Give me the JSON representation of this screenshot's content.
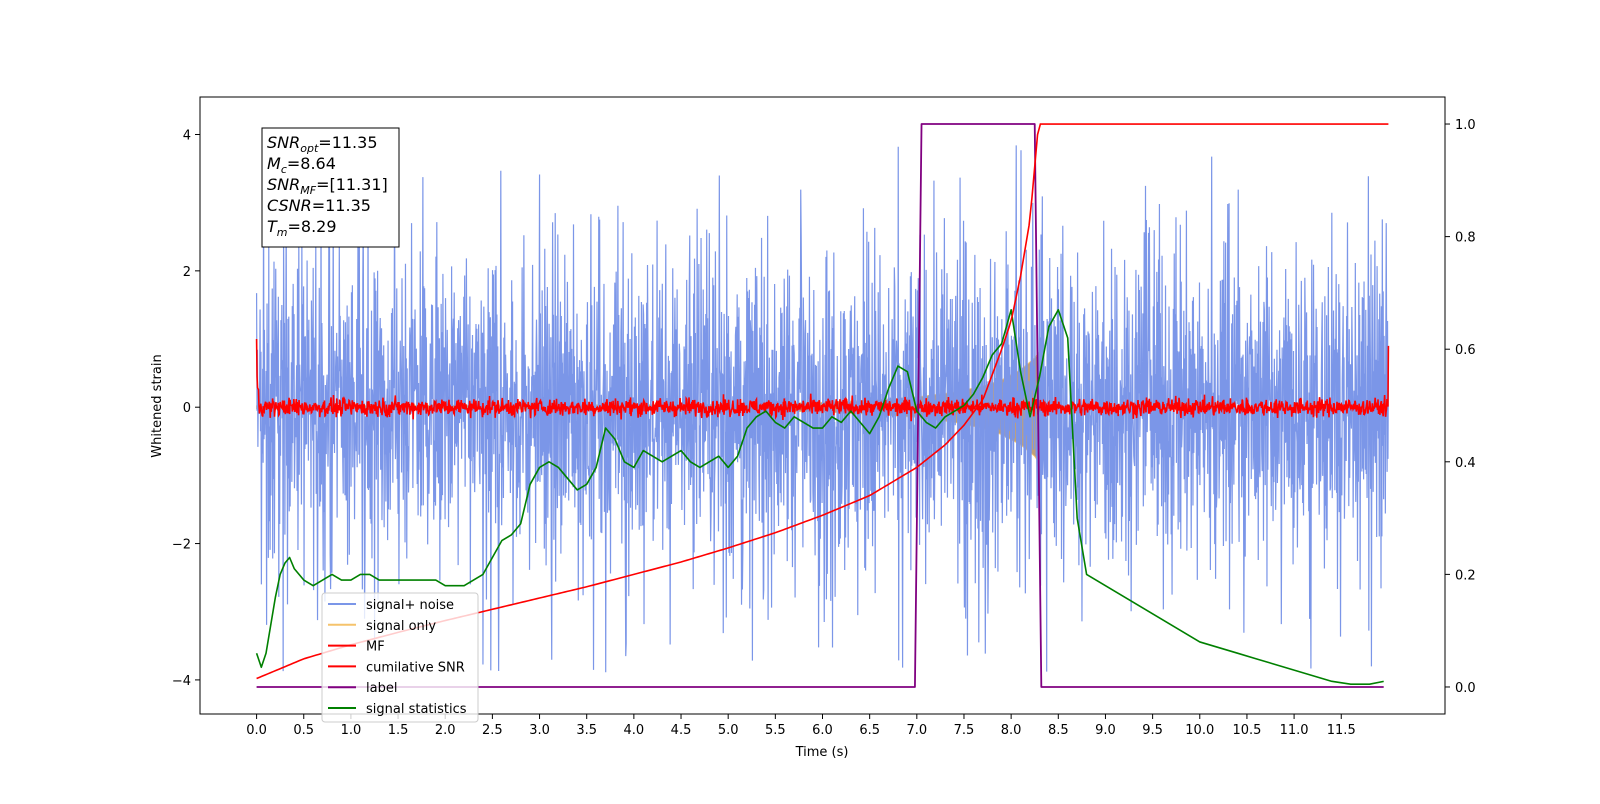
{
  "chart_data": {
    "type": "line",
    "xlabel": "Time (s)",
    "ylabel": "Whitened strain",
    "xlim": [
      -0.6,
      12.6
    ],
    "ylim": [
      -4.5,
      4.55
    ],
    "y2lim": [
      -0.048,
      1.048
    ],
    "x_ticks": [
      0.0,
      0.5,
      1.0,
      1.5,
      2.0,
      2.5,
      3.0,
      3.5,
      4.0,
      4.5,
      5.0,
      5.5,
      6.0,
      6.5,
      7.0,
      7.5,
      8.0,
      8.5,
      9.0,
      9.5,
      10.0,
      10.5,
      11.0,
      11.5
    ],
    "x_tick_labels": [
      "0.0",
      "0.5",
      "1.0",
      "1.5",
      "2.0",
      "2.5",
      "3.0",
      "3.5",
      "4.0",
      "4.5",
      "5.0",
      "5.5",
      "6.0",
      "6.5",
      "7.0",
      "7.5",
      "8.0",
      "8.5",
      "9.0",
      "9.5",
      "10.0",
      "10.5",
      "11.0",
      "11.5"
    ],
    "y_ticks": [
      -4,
      -2,
      0,
      2,
      4
    ],
    "y_tick_labels": [
      "−4",
      "−2",
      "0",
      "2",
      "4"
    ],
    "y2_ticks": [
      0.0,
      0.2,
      0.4,
      0.6,
      0.8,
      1.0
    ],
    "y2_tick_labels": [
      "0.0",
      "0.2",
      "0.4",
      "0.6",
      "0.8",
      "1.0"
    ],
    "legend_position": "lower-left",
    "annotation": {
      "lines": [
        {
          "base": "SNR",
          "sub": "opt",
          "value": "=11.35"
        },
        {
          "base": "M",
          "sub": "c",
          "value": "=8.64"
        },
        {
          "base": "SNR",
          "sub": "MF",
          "value": "=[11.31]"
        },
        {
          "base": "CSNR",
          "sub": "",
          "value": "=11.35"
        },
        {
          "base": "T",
          "sub": "m",
          "value": "=8.29"
        }
      ]
    },
    "series": [
      {
        "name": "signal+ noise",
        "color": "#7b96e8",
        "axis": "left",
        "noise_envelope": {
          "x_range": [
            0.0,
            12.0
          ],
          "typical_amplitude": 1.5,
          "extremes": [
            -4.1,
            4.2
          ]
        }
      },
      {
        "name": "signal only",
        "color": "#f5c36c",
        "fill_color": "#c0a07a",
        "axis": "left",
        "envelope_x": [
          0.0,
          5.0,
          6.0,
          6.5,
          7.0,
          7.4,
          7.7,
          7.9,
          8.1,
          8.25,
          8.29
        ],
        "envelope_y": [
          0.02,
          0.04,
          0.07,
          0.1,
          0.15,
          0.22,
          0.31,
          0.4,
          0.55,
          0.72,
          0.8
        ]
      },
      {
        "name": "MF",
        "color": "#ff0000",
        "axis": "left",
        "x_range": [
          0.0,
          12.0
        ],
        "typical_amplitude": 0.12,
        "edge_values": [
          1.0,
          0.9
        ]
      },
      {
        "name": "cumilative SNR",
        "color": "#ff0000",
        "axis": "right",
        "x": [
          0.0,
          0.5,
          1.0,
          1.5,
          2.0,
          2.5,
          3.0,
          3.5,
          4.0,
          4.5,
          5.0,
          5.5,
          6.0,
          6.5,
          7.0,
          7.3,
          7.5,
          7.7,
          7.9,
          8.0,
          8.1,
          8.2,
          8.29,
          12.0
        ],
        "y": [
          0.015,
          0.05,
          0.075,
          0.097,
          0.118,
          0.138,
          0.158,
          0.178,
          0.2,
          0.222,
          0.247,
          0.274,
          0.305,
          0.34,
          0.39,
          0.43,
          0.465,
          0.51,
          0.6,
          0.65,
          0.73,
          0.83,
          1.0,
          1.0
        ]
      },
      {
        "name": "label",
        "color": "#800080",
        "axis": "right",
        "x": [
          0.0,
          6.98,
          7.05,
          8.25,
          8.32,
          11.95
        ],
        "y": [
          0.0,
          0.0,
          1.0,
          1.0,
          0.0,
          0.0
        ]
      },
      {
        "name": "signal statistics",
        "color": "#008000",
        "axis": "right",
        "x": [
          0.0,
          0.05,
          0.1,
          0.15,
          0.2,
          0.25,
          0.3,
          0.35,
          0.4,
          0.5,
          0.6,
          0.7,
          0.8,
          0.9,
          1.0,
          1.1,
          1.2,
          1.3,
          1.4,
          1.5,
          1.6,
          1.7,
          1.8,
          1.9,
          2.0,
          2.1,
          2.2,
          2.3,
          2.4,
          2.5,
          2.6,
          2.7,
          2.8,
          2.9,
          3.0,
          3.1,
          3.2,
          3.3,
          3.4,
          3.5,
          3.6,
          3.7,
          3.8,
          3.9,
          4.0,
          4.1,
          4.2,
          4.3,
          4.4,
          4.5,
          4.6,
          4.7,
          4.8,
          4.9,
          5.0,
          5.1,
          5.2,
          5.3,
          5.4,
          5.5,
          5.6,
          5.7,
          5.8,
          5.9,
          6.0,
          6.1,
          6.2,
          6.3,
          6.4,
          6.5,
          6.6,
          6.7,
          6.8,
          6.9,
          7.0,
          7.1,
          7.2,
          7.3,
          7.4,
          7.5,
          7.6,
          7.7,
          7.8,
          7.9,
          8.0,
          8.1,
          8.2,
          8.3,
          8.4,
          8.5,
          8.6,
          8.7,
          8.8,
          8.9,
          9.0,
          9.1,
          9.2,
          9.3,
          9.4,
          9.5,
          9.6,
          9.7,
          9.8,
          9.9,
          10.0,
          10.2,
          10.4,
          10.6,
          10.8,
          11.0,
          11.2,
          11.4,
          11.6,
          11.8,
          11.95
        ],
        "y": [
          0.06,
          0.035,
          0.06,
          0.11,
          0.16,
          0.2,
          0.22,
          0.23,
          0.21,
          0.19,
          0.18,
          0.19,
          0.2,
          0.19,
          0.19,
          0.2,
          0.2,
          0.19,
          0.19,
          0.19,
          0.19,
          0.19,
          0.19,
          0.19,
          0.18,
          0.18,
          0.18,
          0.19,
          0.2,
          0.23,
          0.26,
          0.27,
          0.29,
          0.36,
          0.39,
          0.4,
          0.39,
          0.37,
          0.35,
          0.36,
          0.39,
          0.46,
          0.44,
          0.4,
          0.39,
          0.42,
          0.41,
          0.4,
          0.41,
          0.42,
          0.4,
          0.39,
          0.4,
          0.41,
          0.39,
          0.41,
          0.46,
          0.48,
          0.49,
          0.47,
          0.46,
          0.48,
          0.47,
          0.46,
          0.46,
          0.48,
          0.47,
          0.49,
          0.47,
          0.45,
          0.48,
          0.53,
          0.57,
          0.56,
          0.49,
          0.47,
          0.46,
          0.48,
          0.49,
          0.5,
          0.52,
          0.55,
          0.59,
          0.61,
          0.67,
          0.56,
          0.48,
          0.55,
          0.64,
          0.67,
          0.62,
          0.3,
          0.2,
          0.19,
          0.18,
          0.17,
          0.16,
          0.15,
          0.14,
          0.13,
          0.12,
          0.11,
          0.1,
          0.09,
          0.08,
          0.07,
          0.06,
          0.05,
          0.04,
          0.03,
          0.02,
          0.01,
          0.005,
          0.005,
          0.01
        ]
      }
    ]
  }
}
